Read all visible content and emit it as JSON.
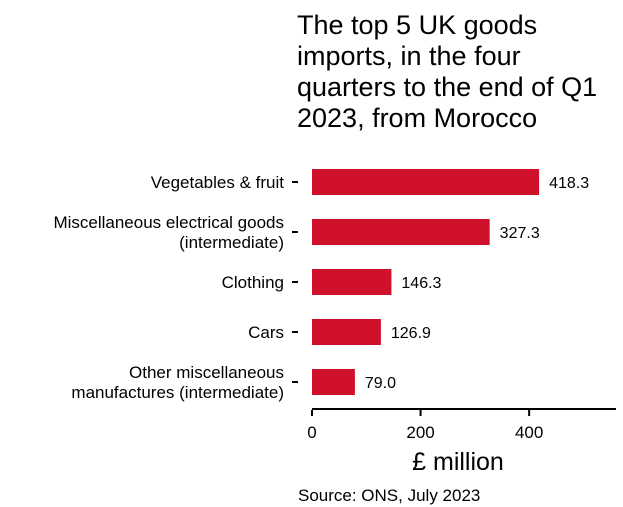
{
  "chart_data": {
    "type": "bar",
    "orientation": "horizontal",
    "title": "The top 5 UK goods imports, in the four quarters to the end of Q1 2023, from Morocco",
    "categories": [
      [
        "Vegetables & fruit"
      ],
      [
        "Miscellaneous electrical goods",
        "(intermediate)"
      ],
      [
        "Clothing"
      ],
      [
        "Cars"
      ],
      [
        "Other miscellaneous",
        "manufactures (intermediate)"
      ]
    ],
    "values": [
      418.3,
      327.3,
      146.3,
      126.9,
      79.0
    ],
    "value_labels": [
      "418.3",
      "327.3",
      "146.3",
      "126.9",
      "79.0"
    ],
    "xlabel": "£ million",
    "ylabel": "",
    "xlim": [
      0,
      560
    ],
    "xticks": [
      0,
      200,
      400
    ],
    "bar_color": "#d0112b",
    "grid": false,
    "source": "Source: ONS, July 2023"
  }
}
